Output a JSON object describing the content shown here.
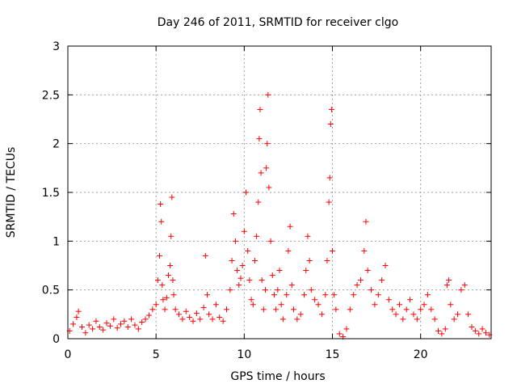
{
  "chart_data": {
    "type": "scatter",
    "title": "Day 246 of 2011, SRMTID for receiver clgo",
    "xlabel": "GPS time / hours",
    "ylabel": "SRMTID / TECUs",
    "xlim": [
      0,
      24
    ],
    "ylim": [
      0,
      3
    ],
    "x_ticks": [
      0,
      5,
      10,
      15,
      20
    ],
    "y_ticks": [
      0,
      0.5,
      1,
      1.5,
      2,
      2.5,
      3
    ],
    "x_tick_labels": [
      "0",
      "5",
      "10",
      "15",
      "20"
    ],
    "y_tick_labels": [
      "0",
      "0.5",
      "1",
      "1.5",
      "2",
      "2.5",
      "3"
    ],
    "grid": true,
    "marker": "+",
    "marker_color": "#ff0000",
    "series": [
      {
        "name": "SRMTID",
        "points": [
          [
            0.1,
            0.08
          ],
          [
            0.3,
            0.15
          ],
          [
            0.5,
            0.22
          ],
          [
            0.6,
            0.28
          ],
          [
            0.8,
            0.12
          ],
          [
            1.0,
            0.06
          ],
          [
            1.2,
            0.14
          ],
          [
            1.4,
            0.1
          ],
          [
            1.6,
            0.18
          ],
          [
            1.8,
            0.12
          ],
          [
            2.0,
            0.09
          ],
          [
            2.2,
            0.16
          ],
          [
            2.4,
            0.13
          ],
          [
            2.6,
            0.2
          ],
          [
            2.8,
            0.11
          ],
          [
            3.0,
            0.15
          ],
          [
            3.2,
            0.18
          ],
          [
            3.4,
            0.12
          ],
          [
            3.6,
            0.2
          ],
          [
            3.8,
            0.14
          ],
          [
            4.0,
            0.1
          ],
          [
            4.2,
            0.17
          ],
          [
            4.4,
            0.2
          ],
          [
            4.6,
            0.24
          ],
          [
            4.8,
            0.3
          ],
          [
            5.0,
            0.35
          ],
          [
            5.1,
            0.6
          ],
          [
            5.2,
            0.85
          ],
          [
            5.25,
            1.38
          ],
          [
            5.3,
            1.2
          ],
          [
            5.35,
            0.55
          ],
          [
            5.4,
            0.4
          ],
          [
            5.5,
            0.3
          ],
          [
            5.6,
            0.42
          ],
          [
            5.7,
            0.65
          ],
          [
            5.8,
            0.75
          ],
          [
            5.85,
            1.05
          ],
          [
            5.9,
            1.45
          ],
          [
            5.95,
            0.6
          ],
          [
            6.0,
            0.45
          ],
          [
            6.1,
            0.3
          ],
          [
            6.3,
            0.25
          ],
          [
            6.5,
            0.2
          ],
          [
            6.7,
            0.28
          ],
          [
            6.9,
            0.22
          ],
          [
            7.1,
            0.18
          ],
          [
            7.3,
            0.26
          ],
          [
            7.5,
            0.2
          ],
          [
            7.7,
            0.32
          ],
          [
            7.8,
            0.85
          ],
          [
            7.9,
            0.45
          ],
          [
            8.0,
            0.25
          ],
          [
            8.2,
            0.2
          ],
          [
            8.4,
            0.35
          ],
          [
            8.6,
            0.22
          ],
          [
            8.8,
            0.18
          ],
          [
            9.0,
            0.3
          ],
          [
            9.2,
            0.5
          ],
          [
            9.3,
            0.8
          ],
          [
            9.4,
            1.28
          ],
          [
            9.5,
            1.0
          ],
          [
            9.6,
            0.7
          ],
          [
            9.7,
            0.55
          ],
          [
            9.8,
            0.62
          ],
          [
            9.9,
            0.75
          ],
          [
            10.0,
            1.1
          ],
          [
            10.1,
            1.5
          ],
          [
            10.2,
            0.9
          ],
          [
            10.3,
            0.6
          ],
          [
            10.4,
            0.4
          ],
          [
            10.5,
            0.35
          ],
          [
            10.6,
            0.8
          ],
          [
            10.7,
            1.05
          ],
          [
            10.8,
            1.4
          ],
          [
            10.85,
            2.05
          ],
          [
            10.9,
            2.35
          ],
          [
            10.95,
            1.7
          ],
          [
            11.0,
            0.6
          ],
          [
            11.1,
            0.3
          ],
          [
            11.2,
            0.5
          ],
          [
            11.25,
            1.75
          ],
          [
            11.3,
            2.0
          ],
          [
            11.35,
            2.5
          ],
          [
            11.4,
            1.55
          ],
          [
            11.5,
            1.0
          ],
          [
            11.6,
            0.65
          ],
          [
            11.7,
            0.45
          ],
          [
            11.8,
            0.3
          ],
          [
            11.9,
            0.5
          ],
          [
            12.0,
            0.7
          ],
          [
            12.1,
            0.35
          ],
          [
            12.2,
            0.2
          ],
          [
            12.4,
            0.45
          ],
          [
            12.5,
            0.9
          ],
          [
            12.6,
            1.15
          ],
          [
            12.7,
            0.55
          ],
          [
            12.8,
            0.3
          ],
          [
            13.0,
            0.2
          ],
          [
            13.2,
            0.25
          ],
          [
            13.4,
            0.45
          ],
          [
            13.5,
            0.7
          ],
          [
            13.6,
            1.05
          ],
          [
            13.7,
            0.8
          ],
          [
            13.8,
            0.5
          ],
          [
            14.0,
            0.4
          ],
          [
            14.2,
            0.35
          ],
          [
            14.4,
            0.25
          ],
          [
            14.6,
            0.45
          ],
          [
            14.7,
            0.8
          ],
          [
            14.8,
            1.4
          ],
          [
            14.85,
            1.65
          ],
          [
            14.9,
            2.2
          ],
          [
            14.95,
            2.35
          ],
          [
            15.0,
            0.9
          ],
          [
            15.1,
            0.45
          ],
          [
            15.2,
            0.3
          ],
          [
            15.4,
            0.05
          ],
          [
            15.6,
            0.02
          ],
          [
            15.8,
            0.1
          ],
          [
            16.0,
            0.3
          ],
          [
            16.2,
            0.45
          ],
          [
            16.4,
            0.55
          ],
          [
            16.6,
            0.6
          ],
          [
            16.8,
            0.9
          ],
          [
            16.9,
            1.2
          ],
          [
            17.0,
            0.7
          ],
          [
            17.2,
            0.5
          ],
          [
            17.4,
            0.35
          ],
          [
            17.6,
            0.45
          ],
          [
            17.8,
            0.6
          ],
          [
            18.0,
            0.75
          ],
          [
            18.2,
            0.4
          ],
          [
            18.4,
            0.3
          ],
          [
            18.6,
            0.25
          ],
          [
            18.8,
            0.35
          ],
          [
            19.0,
            0.2
          ],
          [
            19.2,
            0.3
          ],
          [
            19.4,
            0.4
          ],
          [
            19.6,
            0.25
          ],
          [
            19.8,
            0.2
          ],
          [
            20.0,
            0.3
          ],
          [
            20.2,
            0.35
          ],
          [
            20.4,
            0.45
          ],
          [
            20.6,
            0.3
          ],
          [
            20.8,
            0.2
          ],
          [
            21.0,
            0.08
          ],
          [
            21.2,
            0.05
          ],
          [
            21.4,
            0.1
          ],
          [
            21.5,
            0.55
          ],
          [
            21.6,
            0.6
          ],
          [
            21.7,
            0.35
          ],
          [
            21.9,
            0.2
          ],
          [
            22.1,
            0.25
          ],
          [
            22.3,
            0.5
          ],
          [
            22.5,
            0.55
          ],
          [
            22.7,
            0.25
          ],
          [
            22.9,
            0.12
          ],
          [
            23.1,
            0.08
          ],
          [
            23.3,
            0.05
          ],
          [
            23.5,
            0.1
          ],
          [
            23.7,
            0.06
          ],
          [
            23.9,
            0.04
          ]
        ]
      }
    ]
  }
}
